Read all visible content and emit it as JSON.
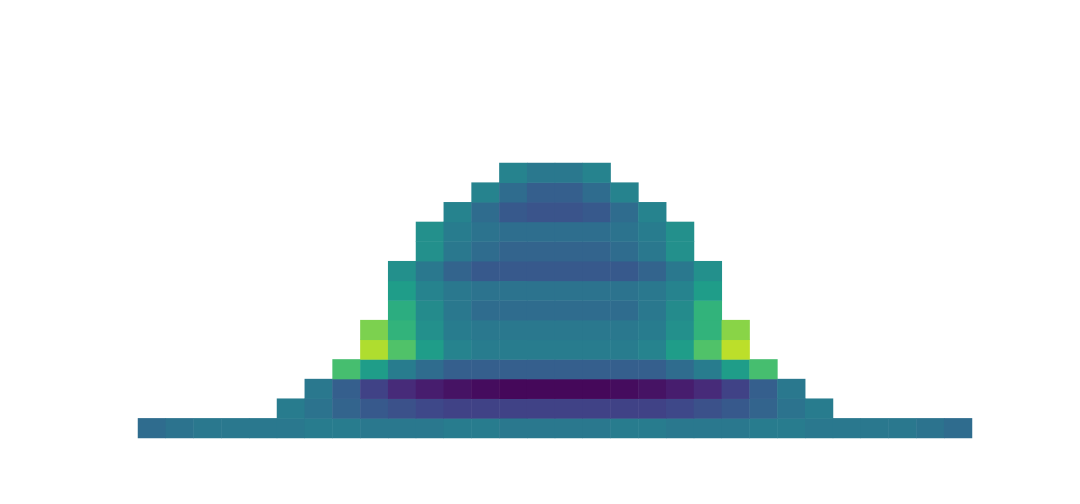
{
  "chart_data": {
    "type": "heatmap",
    "x": [
      0,
      1,
      2,
      3,
      4,
      5,
      6,
      7,
      8,
      9,
      10,
      11,
      12,
      13,
      14,
      15,
      16,
      17,
      18,
      19,
      20,
      21,
      22,
      23,
      24,
      25,
      26,
      27,
      28,
      29
    ],
    "y": [
      0,
      1,
      2,
      3,
      4,
      5,
      6,
      7,
      8,
      9,
      10,
      11,
      12,
      13
    ],
    "zlim": [
      0,
      1
    ],
    "tick_labels": false,
    "grid": false,
    "cells": [
      [
        0.35,
        0.38,
        0.4,
        0.4,
        0.4,
        0.4,
        0.42,
        0.42,
        0.4,
        0.4,
        0.4,
        0.42,
        0.42,
        0.4,
        0.4,
        0.4,
        0.4,
        0.42,
        0.42,
        0.4,
        0.4,
        0.4,
        0.42,
        0.42,
        0.4,
        0.4,
        0.4,
        0.4,
        0.38,
        0.35
      ],
      [
        null,
        null,
        null,
        null,
        null,
        0.42,
        0.38,
        0.32,
        0.28,
        0.25,
        0.22,
        0.2,
        0.2,
        0.2,
        0.2,
        0.2,
        0.2,
        0.2,
        0.2,
        0.22,
        0.25,
        0.28,
        0.32,
        0.38,
        0.42,
        null,
        null,
        null,
        null,
        null
      ],
      [
        null,
        null,
        null,
        null,
        null,
        null,
        0.4,
        0.3,
        0.2,
        0.12,
        0.08,
        0.05,
        0.03,
        0.02,
        0.02,
        0.02,
        0.02,
        0.03,
        0.05,
        0.08,
        0.12,
        0.2,
        0.3,
        0.4,
        null,
        null,
        null,
        null,
        null,
        null
      ],
      [
        null,
        null,
        null,
        null,
        null,
        null,
        null,
        0.7,
        0.55,
        0.42,
        0.35,
        0.3,
        0.3,
        0.3,
        0.3,
        0.3,
        0.3,
        0.3,
        0.3,
        0.35,
        0.42,
        0.55,
        0.7,
        null,
        null,
        null,
        null,
        null,
        null,
        null
      ],
      [
        null,
        null,
        null,
        null,
        null,
        null,
        null,
        null,
        0.88,
        0.72,
        0.55,
        0.45,
        0.42,
        0.42,
        0.42,
        0.42,
        0.42,
        0.42,
        0.45,
        0.55,
        0.72,
        0.9,
        null,
        null,
        null,
        null,
        null,
        null,
        null,
        null
      ],
      [
        null,
        null,
        null,
        null,
        null,
        null,
        null,
        null,
        0.8,
        0.65,
        0.5,
        0.42,
        0.4,
        0.4,
        0.4,
        0.4,
        0.4,
        0.4,
        0.42,
        0.5,
        0.65,
        0.82,
        null,
        null,
        null,
        null,
        null,
        null,
        null,
        null
      ],
      [
        null,
        null,
        null,
        null,
        null,
        null,
        null,
        null,
        null,
        0.62,
        0.48,
        0.4,
        0.35,
        0.35,
        0.35,
        0.35,
        0.35,
        0.35,
        0.4,
        0.48,
        0.65,
        null,
        null,
        null,
        null,
        null,
        null,
        null,
        null,
        null
      ],
      [
        null,
        null,
        null,
        null,
        null,
        null,
        null,
        null,
        null,
        0.55,
        0.45,
        0.4,
        0.38,
        0.38,
        0.38,
        0.38,
        0.38,
        0.38,
        0.4,
        0.45,
        0.55,
        null,
        null,
        null,
        null,
        null,
        null,
        null,
        null,
        null
      ],
      [
        null,
        null,
        null,
        null,
        null,
        null,
        null,
        null,
        null,
        0.5,
        0.4,
        0.32,
        0.28,
        0.28,
        0.28,
        0.28,
        0.28,
        0.28,
        0.32,
        0.4,
        0.5,
        null,
        null,
        null,
        null,
        null,
        null,
        null,
        null,
        null
      ],
      [
        null,
        null,
        null,
        null,
        null,
        null,
        null,
        null,
        null,
        null,
        0.5,
        0.4,
        0.35,
        0.32,
        0.32,
        0.32,
        0.32,
        0.35,
        0.4,
        0.5,
        null,
        null,
        null,
        null,
        null,
        null,
        null,
        null,
        null,
        null
      ],
      [
        null,
        null,
        null,
        null,
        null,
        null,
        null,
        null,
        null,
        null,
        0.5,
        0.42,
        0.38,
        0.36,
        0.36,
        0.36,
        0.36,
        0.38,
        0.42,
        0.5,
        null,
        null,
        null,
        null,
        null,
        null,
        null,
        null,
        null,
        null
      ],
      [
        null,
        null,
        null,
        null,
        null,
        null,
        null,
        null,
        null,
        null,
        null,
        0.45,
        0.35,
        0.28,
        0.26,
        0.26,
        0.28,
        0.35,
        0.45,
        null,
        null,
        null,
        null,
        null,
        null,
        null,
        null,
        null,
        null,
        null
      ],
      [
        null,
        null,
        null,
        null,
        null,
        null,
        null,
        null,
        null,
        null,
        null,
        null,
        0.45,
        0.35,
        0.3,
        0.3,
        0.35,
        0.45,
        null,
        null,
        null,
        null,
        null,
        null,
        null,
        null,
        null,
        null,
        null,
        null
      ],
      [
        null,
        null,
        null,
        null,
        null,
        null,
        null,
        null,
        null,
        null,
        null,
        null,
        null,
        0.45,
        0.4,
        0.4,
        0.45,
        null,
        null,
        null,
        null,
        null,
        null,
        null,
        null,
        null,
        null,
        null,
        null,
        null
      ]
    ]
  }
}
